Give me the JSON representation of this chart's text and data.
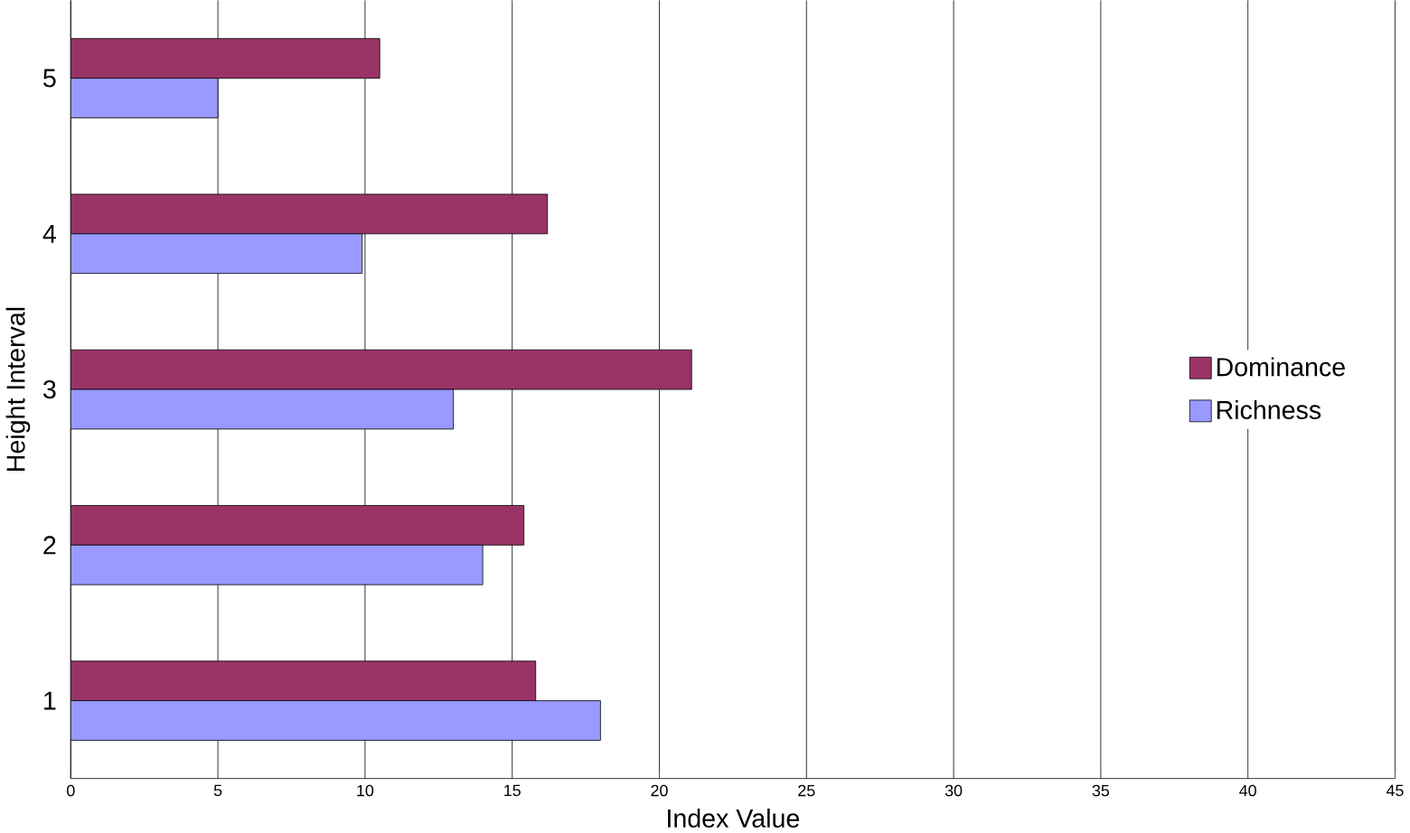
{
  "chart_data": {
    "type": "bar",
    "orientation": "horizontal",
    "xlabel": "Index Value",
    "ylabel": "Height Interval",
    "categories": [
      "5",
      "4",
      "3",
      "2",
      "1"
    ],
    "series": [
      {
        "name": "Dominance",
        "color": "#993366",
        "values": [
          10.5,
          16.2,
          21.1,
          15.4,
          15.8
        ]
      },
      {
        "name": "Richness",
        "color": "#9999ff",
        "values": [
          5.0,
          9.9,
          13.0,
          14.0,
          18.0
        ]
      }
    ],
    "xlim": [
      0,
      45
    ],
    "xticks": [
      0,
      5,
      10,
      15,
      20,
      25,
      30,
      35,
      40,
      45
    ],
    "grid": "x",
    "legend": "right"
  }
}
